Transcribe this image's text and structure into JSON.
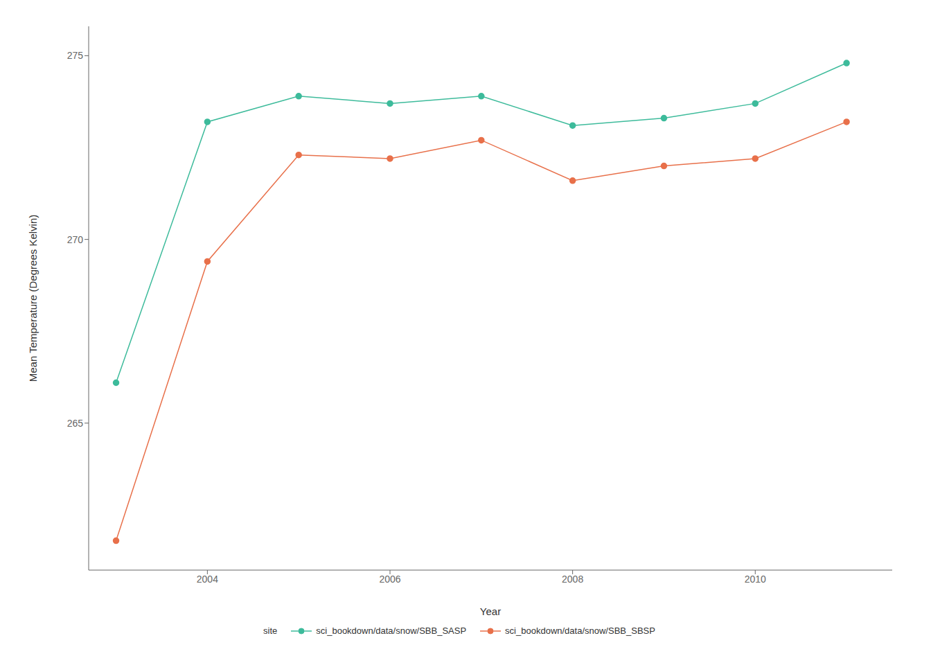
{
  "chart_data": {
    "type": "line",
    "xlabel": "Year",
    "ylabel": "Mean Temperature (Degrees Kelvin)",
    "x": [
      2003,
      2004,
      2005,
      2006,
      2007,
      2008,
      2009,
      2010,
      2011
    ],
    "series": [
      {
        "name": "sci_bookdown/data/snow/SBB_SASP",
        "color": "#3dbb9b",
        "marker": "circle",
        "values": [
          266.1,
          273.2,
          273.9,
          273.7,
          273.9,
          273.1,
          273.3,
          273.7,
          274.8
        ]
      },
      {
        "name": "sci_bookdown/data/snow/SBB_SBSP",
        "color": "#e8704a",
        "marker": "circle",
        "values": [
          261.8,
          269.4,
          272.3,
          272.2,
          272.7,
          271.6,
          272.0,
          272.2,
          273.2
        ]
      }
    ],
    "xlim": [
      2002.7,
      2011.5
    ],
    "xticks": [
      2004,
      2006,
      2008,
      2010
    ],
    "ylim": [
      261.0,
      275.8
    ],
    "yticks": [
      265,
      270,
      275
    ],
    "grid": false,
    "legend": "bottom",
    "legend_title": "site"
  }
}
